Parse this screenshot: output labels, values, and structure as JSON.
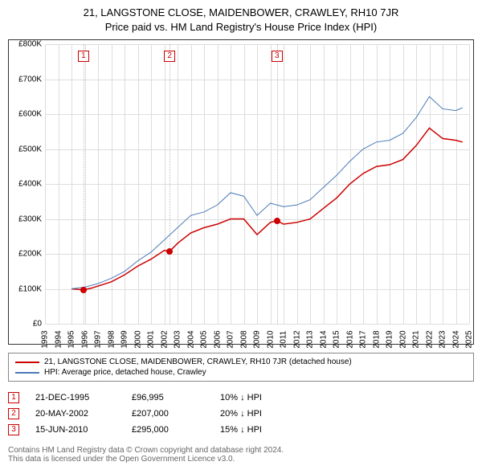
{
  "title": "21, LANGSTONE CLOSE, MAIDENBOWER, CRAWLEY, RH10 7JR",
  "subtitle": "Price paid vs. HM Land Registry's House Price Index (HPI)",
  "chart": {
    "type": "line",
    "x_axis": {
      "min": 1993,
      "max": 2025,
      "step": 1,
      "labels": [
        "1993",
        "1994",
        "1995",
        "1996",
        "1997",
        "1998",
        "1999",
        "2000",
        "2001",
        "2002",
        "2003",
        "2004",
        "2005",
        "2006",
        "2007",
        "2008",
        "2009",
        "2010",
        "2011",
        "2012",
        "2013",
        "2014",
        "2015",
        "2016",
        "2017",
        "2018",
        "2019",
        "2020",
        "2021",
        "2022",
        "2023",
        "2024",
        "2025"
      ]
    },
    "y_axis": {
      "min": 0,
      "max": 800000,
      "step": 100000,
      "labels": [
        "£0",
        "£100K",
        "£200K",
        "£300K",
        "£400K",
        "£500K",
        "£600K",
        "£700K",
        "£800K"
      ]
    },
    "grid_color": "#dddddd",
    "border_color": "#333333",
    "background_color": "#ffffff",
    "dotted_color": "#bbbbbb",
    "series": [
      {
        "name": "property",
        "color": "#cc0000",
        "width": 1.5,
        "points": [
          [
            1995,
            100000
          ],
          [
            1995.9,
            96995
          ],
          [
            1996.5,
            102000
          ],
          [
            1997,
            108000
          ],
          [
            1998,
            120000
          ],
          [
            1999,
            140000
          ],
          [
            2000,
            165000
          ],
          [
            2001,
            185000
          ],
          [
            2002,
            210000
          ],
          [
            2002.4,
            207000
          ],
          [
            2003,
            230000
          ],
          [
            2004,
            260000
          ],
          [
            2005,
            275000
          ],
          [
            2006,
            285000
          ],
          [
            2007,
            300000
          ],
          [
            2008,
            300000
          ],
          [
            2009,
            255000
          ],
          [
            2010,
            290000
          ],
          [
            2010.5,
            295000
          ],
          [
            2011,
            285000
          ],
          [
            2012,
            290000
          ],
          [
            2013,
            300000
          ],
          [
            2014,
            330000
          ],
          [
            2015,
            360000
          ],
          [
            2016,
            400000
          ],
          [
            2017,
            430000
          ],
          [
            2018,
            450000
          ],
          [
            2019,
            455000
          ],
          [
            2020,
            470000
          ],
          [
            2021,
            510000
          ],
          [
            2022,
            560000
          ],
          [
            2023,
            530000
          ],
          [
            2024,
            525000
          ],
          [
            2024.5,
            520000
          ]
        ]
      },
      {
        "name": "hpi",
        "color": "#4a7ab8",
        "width": 1,
        "points": [
          [
            1995,
            100000
          ],
          [
            1996,
            105000
          ],
          [
            1997,
            115000
          ],
          [
            1998,
            130000
          ],
          [
            1999,
            150000
          ],
          [
            2000,
            180000
          ],
          [
            2001,
            205000
          ],
          [
            2002,
            240000
          ],
          [
            2003,
            275000
          ],
          [
            2004,
            310000
          ],
          [
            2005,
            320000
          ],
          [
            2006,
            340000
          ],
          [
            2007,
            375000
          ],
          [
            2008,
            365000
          ],
          [
            2009,
            310000
          ],
          [
            2010,
            345000
          ],
          [
            2011,
            335000
          ],
          [
            2012,
            340000
          ],
          [
            2013,
            355000
          ],
          [
            2014,
            390000
          ],
          [
            2015,
            425000
          ],
          [
            2016,
            465000
          ],
          [
            2017,
            500000
          ],
          [
            2018,
            520000
          ],
          [
            2019,
            525000
          ],
          [
            2020,
            545000
          ],
          [
            2021,
            590000
          ],
          [
            2022,
            650000
          ],
          [
            2023,
            615000
          ],
          [
            2024,
            610000
          ],
          [
            2024.5,
            618000
          ]
        ]
      }
    ],
    "markers": [
      {
        "n": "1",
        "x": 1995.9,
        "y": 96995,
        "dotted_x": 1995.9
      },
      {
        "n": "2",
        "x": 2002.4,
        "y": 207000,
        "dotted_x": 2002.4
      },
      {
        "n": "3",
        "x": 2010.5,
        "y": 295000,
        "dotted_x": 2010.5
      }
    ]
  },
  "legend": {
    "items": [
      {
        "color": "#cc0000",
        "label": "21, LANGSTONE CLOSE, MAIDENBOWER, CRAWLEY, RH10 7JR (detached house)"
      },
      {
        "color": "#4a7ab8",
        "label": "HPI: Average price, detached house, Crawley"
      }
    ]
  },
  "transactions": [
    {
      "n": "1",
      "date": "21-DEC-1995",
      "price": "£96,995",
      "diff": "10% ↓ HPI"
    },
    {
      "n": "2",
      "date": "20-MAY-2002",
      "price": "£207,000",
      "diff": "20% ↓ HPI"
    },
    {
      "n": "3",
      "date": "15-JUN-2010",
      "price": "£295,000",
      "diff": "15% ↓ HPI"
    }
  ],
  "footer": {
    "line1": "Contains HM Land Registry data © Crown copyright and database right 2024.",
    "line2": "This data is licensed under the Open Government Licence v3.0."
  }
}
